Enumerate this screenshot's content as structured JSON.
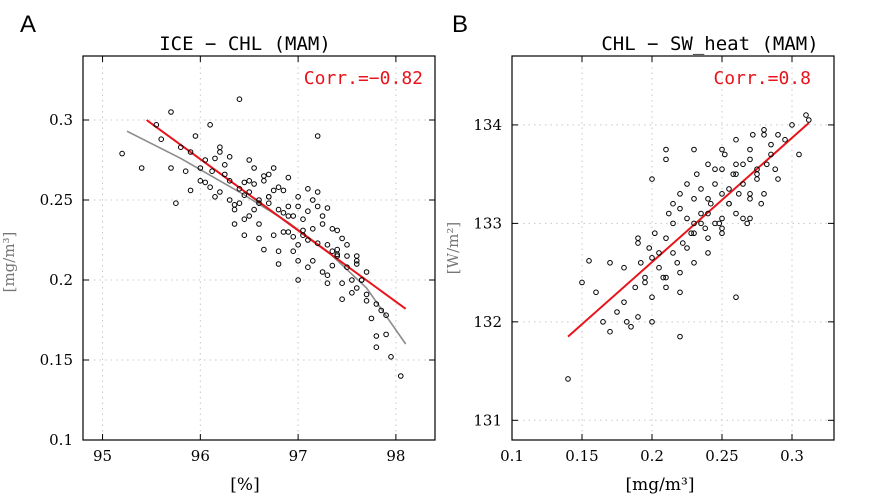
{
  "chart_data": [
    {
      "panel": "A",
      "type": "scatter",
      "title": "ICE − CHL (MAM)",
      "xlabel": "[%]",
      "ylabel": "[mg/m³]",
      "xlim": [
        94.8,
        98.4
      ],
      "ylim": [
        0.1,
        0.34
      ],
      "xticks": [
        95,
        96,
        97,
        98
      ],
      "xtick_labels": [
        "95",
        "96",
        "97",
        "98"
      ],
      "yticks": [
        0.1,
        0.15,
        0.2,
        0.25,
        0.3
      ],
      "ytick_labels": [
        "0.1",
        "0.15",
        "0.2",
        "0.25",
        "0.3"
      ],
      "grid": true,
      "annotation": "Corr.=−0.82",
      "colors": {
        "points": "#000000",
        "fit_line": "#e8141c",
        "smooth_line": "#8c8c8c",
        "annotation": "#e8141c"
      },
      "fit_line": {
        "x": [
          95.45,
          98.1
        ],
        "y": [
          0.3,
          0.182
        ]
      },
      "smooth_line": {
        "x": [
          95.25,
          95.8,
          96.4,
          96.9,
          97.3,
          97.7,
          98.1
        ],
        "y": [
          0.293,
          0.276,
          0.255,
          0.236,
          0.218,
          0.195,
          0.16
        ]
      },
      "points": {
        "x": [
          95.2,
          95.4,
          95.55,
          95.6,
          95.7,
          95.8,
          95.85,
          95.9,
          95.75,
          95.95,
          96.0,
          96.05,
          96.1,
          96.15,
          96.2,
          96.25,
          96.3,
          96.35,
          96.4,
          96.45,
          96.5,
          96.55,
          96.6,
          96.65,
          96.7,
          96.75,
          96.8,
          96.85,
          96.9,
          96.95,
          97.0,
          97.05,
          97.1,
          97.15,
          97.2,
          97.25,
          97.3,
          97.35,
          97.4,
          97.45,
          97.5,
          97.55,
          97.6,
          97.65,
          97.7,
          97.75,
          97.8,
          97.85,
          97.9,
          97.95,
          98.05,
          96.12,
          96.3,
          96.5,
          96.7,
          96.85,
          97.0,
          97.2,
          97.45,
          97.7,
          96.4,
          96.6,
          96.8,
          97.0,
          97.2,
          97.4,
          97.6,
          96.2,
          96.45,
          96.75,
          97.05,
          97.35,
          97.65,
          96.55,
          96.9,
          97.25,
          97.55,
          96.35,
          96.65,
          96.95,
          97.15,
          97.45,
          96.25,
          96.5,
          96.8,
          97.1,
          97.4,
          96.6,
          96.9,
          97.3,
          96.15,
          96.4,
          96.7,
          97.0,
          97.3,
          97.6,
          96.3,
          96.55,
          96.85,
          97.15,
          97.5,
          97.8,
          96.05,
          96.45,
          96.75,
          97.05,
          97.35,
          96.6,
          96.95,
          97.25,
          96.9,
          97.1,
          96.0,
          95.7,
          95.9,
          96.2,
          96.5,
          96.8,
          97.0,
          97.3,
          97.6,
          97.9,
          96.35,
          96.65,
          97.2,
          97.5,
          97.8,
          96.1,
          96.45,
          96.7,
          97.1,
          97.4,
          97.7
        ],
        "y": [
          0.279,
          0.27,
          0.297,
          0.288,
          0.305,
          0.283,
          0.268,
          0.256,
          0.248,
          0.29,
          0.27,
          0.261,
          0.297,
          0.252,
          0.28,
          0.266,
          0.277,
          0.244,
          0.313,
          0.253,
          0.262,
          0.244,
          0.226,
          0.262,
          0.248,
          0.27,
          0.244,
          0.23,
          0.264,
          0.24,
          0.252,
          0.231,
          0.257,
          0.212,
          0.29,
          0.235,
          0.222,
          0.209,
          0.231,
          0.198,
          0.215,
          0.192,
          0.212,
          0.2,
          0.187,
          0.176,
          0.165,
          0.181,
          0.166,
          0.152,
          0.14,
          0.268,
          0.25,
          0.24,
          0.252,
          0.256,
          0.246,
          0.246,
          0.226,
          0.205,
          0.257,
          0.25,
          0.258,
          0.222,
          0.223,
          0.219,
          0.21,
          0.283,
          0.261,
          0.228,
          0.238,
          0.218,
          0.2,
          0.27,
          0.246,
          0.24,
          0.2,
          0.235,
          0.265,
          0.227,
          0.25,
          0.188,
          0.272,
          0.255,
          0.21,
          0.225,
          0.215,
          0.235,
          0.23,
          0.198,
          0.276,
          0.248,
          0.266,
          0.212,
          0.203,
          0.215,
          0.262,
          0.26,
          0.242,
          0.232,
          0.208,
          0.185,
          0.275,
          0.238,
          0.256,
          0.228,
          0.232,
          0.248,
          0.218,
          0.205,
          0.24,
          0.208,
          0.262,
          0.27,
          0.28,
          0.255,
          0.275,
          0.218,
          0.2,
          0.245,
          0.195,
          0.178,
          0.247,
          0.219,
          0.255,
          0.222,
          0.158,
          0.258,
          0.228,
          0.252,
          0.243,
          0.216,
          0.191
        ]
      }
    },
    {
      "panel": "B",
      "type": "scatter",
      "title": "CHL − SW_heat (MAM)",
      "xlabel": "[mg/m³]",
      "ylabel": "[W/m²]",
      "xlim": [
        0.1,
        0.33
      ],
      "ylim": [
        130.8,
        134.7
      ],
      "xticks": [
        0.1,
        0.15,
        0.2,
        0.25,
        0.3
      ],
      "xtick_labels": [
        "0.1",
        "0.15",
        "0.2",
        "0.25",
        "0.3"
      ],
      "yticks": [
        131,
        132,
        133,
        134
      ],
      "ytick_labels": [
        "131",
        "132",
        "133",
        "134"
      ],
      "grid": true,
      "annotation": "Corr.=0.8",
      "colors": {
        "points": "#000000",
        "fit_line": "#e8141c",
        "annotation": "#e8141c"
      },
      "fit_line": {
        "x": [
          0.14,
          0.312
        ],
        "y": [
          131.85,
          134.02
        ]
      },
      "points": {
        "x": [
          0.14,
          0.15,
          0.155,
          0.16,
          0.165,
          0.17,
          0.175,
          0.18,
          0.182,
          0.185,
          0.188,
          0.19,
          0.192,
          0.195,
          0.198,
          0.2,
          0.202,
          0.205,
          0.208,
          0.21,
          0.212,
          0.215,
          0.218,
          0.22,
          0.222,
          0.225,
          0.228,
          0.23,
          0.232,
          0.235,
          0.238,
          0.24,
          0.242,
          0.245,
          0.248,
          0.25,
          0.252,
          0.255,
          0.258,
          0.26,
          0.262,
          0.265,
          0.268,
          0.27,
          0.272,
          0.275,
          0.278,
          0.28,
          0.282,
          0.285,
          0.288,
          0.29,
          0.295,
          0.3,
          0.305,
          0.31,
          0.312,
          0.2,
          0.21,
          0.22,
          0.23,
          0.24,
          0.25,
          0.26,
          0.27,
          0.28,
          0.19,
          0.205,
          0.215,
          0.225,
          0.235,
          0.245,
          0.255,
          0.265,
          0.275,
          0.285,
          0.2,
          0.21,
          0.22,
          0.23,
          0.24,
          0.25,
          0.26,
          0.27,
          0.195,
          0.215,
          0.235,
          0.255,
          0.275,
          0.18,
          0.2,
          0.22,
          0.24,
          0.26,
          0.28,
          0.21,
          0.23,
          0.25,
          0.27,
          0.225,
          0.245,
          0.265,
          0.17,
          0.19,
          0.21,
          0.23,
          0.25,
          0.27,
          0.29,
          0.24,
          0.26,
          0.22,
          0.25
        ],
        "y": [
          131.42,
          132.4,
          132.62,
          132.3,
          132.0,
          131.9,
          132.1,
          132.55,
          132.0,
          131.95,
          132.35,
          132.85,
          132.6,
          132.4,
          132.75,
          132.65,
          132.9,
          132.7,
          132.45,
          132.85,
          133.1,
          133.0,
          132.6,
          133.3,
          132.8,
          133.05,
          132.9,
          133.25,
          133.5,
          133.1,
          132.95,
          133.6,
          133.2,
          133.4,
          133.0,
          133.3,
          133.7,
          133.2,
          133.5,
          133.85,
          133.3,
          133.4,
          133.0,
          133.65,
          133.9,
          133.5,
          133.2,
          133.95,
          133.6,
          133.8,
          133.55,
          133.45,
          133.85,
          134.0,
          133.7,
          134.1,
          134.05,
          133.45,
          133.65,
          133.15,
          133.0,
          133.1,
          133.55,
          133.6,
          133.75,
          133.9,
          132.8,
          132.55,
          133.2,
          132.75,
          133.35,
          133.0,
          133.2,
          133.6,
          133.45,
          133.7,
          132.25,
          132.35,
          132.5,
          132.6,
          132.85,
          133.05,
          133.1,
          133.3,
          132.45,
          132.7,
          133.0,
          133.35,
          133.55,
          132.2,
          132.0,
          132.3,
          132.7,
          132.25,
          133.3,
          133.75,
          133.75,
          133.75,
          133.25,
          133.4,
          133.55,
          133.05,
          132.6,
          132.05,
          132.45,
          132.9,
          132.95,
          133.05,
          133.9,
          133.25,
          133.5,
          131.85,
          132.9
        ]
      }
    }
  ],
  "colors": {
    "text": "#000000",
    "grid": "#c8c8c8",
    "ylabel": "#777777"
  }
}
